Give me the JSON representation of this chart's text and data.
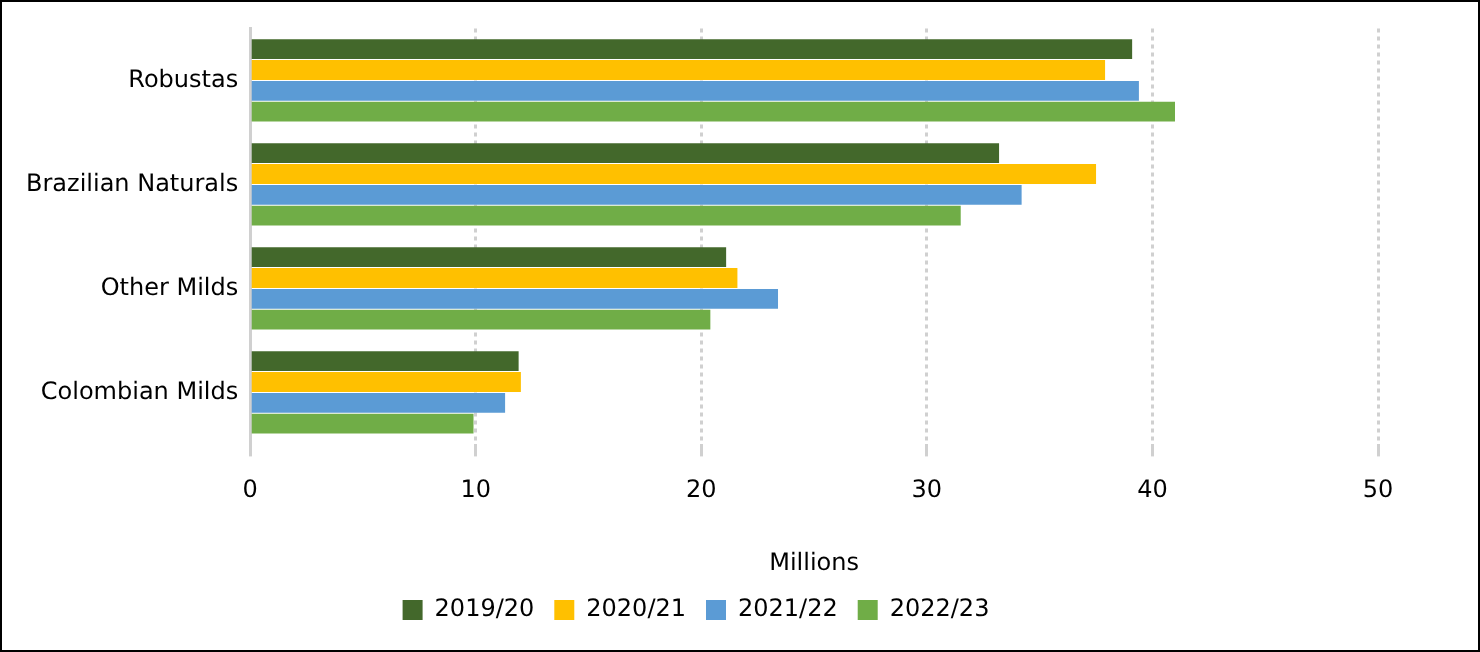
{
  "chart_data": {
    "type": "bar",
    "orientation": "horizontal",
    "categories": [
      "Robustas",
      "Brazilian Naturals",
      "Other Milds",
      "Colombian Milds"
    ],
    "series": [
      {
        "name": "2019/20",
        "color": "#43682b",
        "values": [
          39.1,
          33.2,
          21.1,
          11.9
        ]
      },
      {
        "name": "2020/21",
        "color": "#ffc000",
        "values": [
          37.9,
          37.5,
          21.6,
          12.0
        ]
      },
      {
        "name": "2021/22",
        "color": "#5b9bd5",
        "values": [
          39.4,
          34.2,
          23.4,
          11.3
        ]
      },
      {
        "name": "2022/23",
        "color": "#70ad47",
        "values": [
          41.0,
          31.5,
          20.4,
          9.9
        ]
      }
    ],
    "xlabel": "Millions",
    "xlim": [
      0,
      50
    ],
    "xticks": [
      0,
      10,
      20,
      30,
      40,
      50
    ],
    "grid": "x",
    "legend": "bottom"
  }
}
